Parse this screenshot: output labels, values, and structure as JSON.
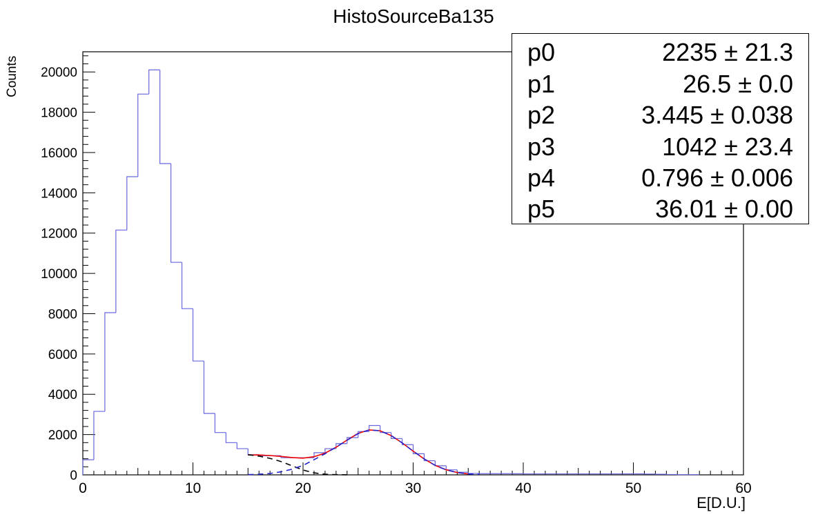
{
  "chart_data": {
    "type": "histogram",
    "title": "HistoSourceBa135",
    "xlabel": "E[D.U.]",
    "ylabel": "Counts",
    "xlim": [
      0,
      60
    ],
    "ylim": [
      0,
      21000
    ],
    "xticks": [
      0,
      10,
      20,
      30,
      40,
      50,
      60
    ],
    "yticks": [
      0,
      2000,
      4000,
      6000,
      8000,
      10000,
      12000,
      14000,
      16000,
      18000,
      20000
    ],
    "grid": false,
    "histogram": {
      "color": "#6666dd",
      "bin_edges": [
        0,
        1,
        2,
        3,
        4,
        5,
        6,
        7,
        8,
        9,
        10,
        11,
        12,
        13,
        14,
        15,
        16,
        17,
        18,
        19,
        20,
        21,
        22,
        23,
        24,
        25,
        26,
        27,
        28,
        29,
        30,
        31,
        32,
        33,
        34,
        35,
        36,
        37,
        38,
        39,
        40,
        41,
        42,
        43,
        44,
        45,
        46,
        47,
        48,
        49,
        50,
        51,
        52,
        53,
        54,
        55,
        56
      ],
      "counts": [
        750,
        3150,
        8050,
        12150,
        14800,
        18900,
        20100,
        15450,
        10550,
        8250,
        5650,
        3050,
        2100,
        1600,
        1300,
        1000,
        950,
        950,
        850,
        850,
        850,
        1100,
        1300,
        1550,
        1850,
        2150,
        2450,
        2100,
        1800,
        1500,
        1050,
        700,
        450,
        250,
        130,
        70,
        60,
        60,
        60,
        55,
        50,
        50,
        50,
        50,
        50,
        50,
        50,
        50,
        50,
        50,
        50,
        40,
        30,
        20,
        10,
        10
      ]
    },
    "fit_curves": [
      {
        "name": "total",
        "color": "#ee0000",
        "style": "solid",
        "x": [
          15,
          16,
          17,
          18,
          19,
          20,
          21,
          22,
          23,
          24,
          25,
          26,
          27,
          28,
          29,
          30,
          31,
          32,
          33,
          34,
          35
        ],
        "y": [
          985,
          985,
          960,
          915,
          860,
          830,
          900,
          1080,
          1370,
          1730,
          2060,
          2230,
          2190,
          1950,
          1590,
          1180,
          790,
          470,
          250,
          115,
          45
        ]
      },
      {
        "name": "background",
        "color": "#000000",
        "style": "dashed",
        "x": [
          15,
          16,
          17,
          18,
          19,
          20,
          21,
          22,
          23,
          24
        ],
        "y": [
          1000,
          930,
          820,
          660,
          450,
          240,
          100,
          30,
          10,
          5
        ]
      },
      {
        "name": "gauss",
        "color": "#2222cc",
        "style": "dashed",
        "x": [
          15,
          16,
          17,
          18,
          19,
          20,
          21,
          22,
          23,
          24,
          25,
          26,
          27,
          28,
          29,
          30,
          31,
          32,
          33,
          34,
          35,
          36
        ],
        "y": [
          10,
          30,
          70,
          150,
          280,
          470,
          750,
          1050,
          1380,
          1720,
          2050,
          2230,
          2190,
          1950,
          1590,
          1180,
          790,
          470,
          250,
          115,
          45,
          20
        ]
      }
    ]
  },
  "stats": [
    {
      "name": "p0",
      "value": "2235 ± 21.3"
    },
    {
      "name": "p1",
      "value": "26.5 ± 0.0"
    },
    {
      "name": "p2",
      "value": "3.445 ± 0.038"
    },
    {
      "name": "p3",
      "value": "1042 ± 23.4"
    },
    {
      "name": "p4",
      "value": "0.796 ± 0.006"
    },
    {
      "name": "p5",
      "value": "36.01 ± 0.00"
    }
  ]
}
